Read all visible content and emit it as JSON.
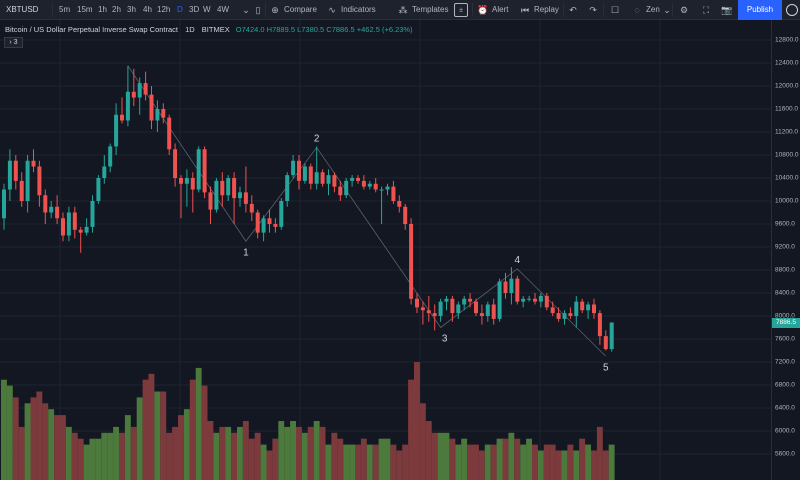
{
  "toolbar": {
    "symbol": "XBTUSD",
    "intervals": [
      "5m",
      "15m",
      "1h",
      "2h",
      "3h",
      "4h",
      "12h",
      "D",
      "3D",
      "W",
      "4W"
    ],
    "active_interval": "D",
    "compare_label": "Compare",
    "indicators_label": "Indicators",
    "templates_label": "Templates",
    "alert_label": "Alert",
    "replay_label": "Replay",
    "zen_label": "Zen",
    "publish_label": "Publish"
  },
  "legend": {
    "title": "Bitcoin / US Dollar Perpetual Inverse Swap Contract",
    "interval": "1D",
    "exchange": "BITMEX",
    "ohlc": "O7424.0 H7889.5 L7380.5 C7886.5 +462.5 (+6.23%)",
    "toggle": "› 3"
  },
  "price_scale": {
    "labels": [
      "12800.0",
      "12400.0",
      "12000.0",
      "11600.0",
      "11200.0",
      "10800.0",
      "10400.0",
      "10000.0",
      "9600.0",
      "9200.0",
      "8800.0",
      "8400.0",
      "8000.0",
      "7600.0",
      "7200.0",
      "6800.0",
      "6400.0",
      "6000.0",
      "5600.0"
    ],
    "current_price": "7886.5"
  },
  "colors": {
    "up": "#26a69a",
    "down": "#ef5350",
    "vol_up": "#4c7a3c",
    "vol_down": "#7d3a3c",
    "wave": "#5d606b"
  },
  "waves": [
    {
      "label": "1",
      "date_index": 41,
      "price": 9300
    },
    {
      "label": "2",
      "date_index": 53,
      "price": 10930
    },
    {
      "label": "3",
      "date_index": 74,
      "price": 7800
    },
    {
      "label": "4",
      "date_index": 87,
      "price": 8820
    },
    {
      "label": "5",
      "date_index": 102,
      "price": 7300
    }
  ],
  "chart_data": {
    "type": "candlestick",
    "symbol": "XBTUSD",
    "interval": "1D",
    "ylim": [
      5400,
      13000
    ],
    "candles": [
      [
        9700,
        10300,
        9500,
        10200
      ],
      [
        10200,
        10900,
        10000,
        10700
      ],
      [
        10700,
        10800,
        10200,
        10350
      ],
      [
        10350,
        10500,
        9900,
        10000
      ],
      [
        10000,
        10800,
        9800,
        10700
      ],
      [
        10700,
        10900,
        10500,
        10600
      ],
      [
        10600,
        10700,
        9900,
        10100
      ],
      [
        10100,
        10200,
        9600,
        9800
      ],
      [
        9800,
        10000,
        9700,
        9900
      ],
      [
        9900,
        10100,
        9600,
        9700
      ],
      [
        9700,
        9800,
        9300,
        9400
      ],
      [
        9400,
        9900,
        9300,
        9800
      ],
      [
        9800,
        9900,
        9350,
        9500
      ],
      [
        9500,
        9550,
        9100,
        9450
      ],
      [
        9450,
        9700,
        9400,
        9550
      ],
      [
        9550,
        10100,
        9450,
        10000
      ],
      [
        10000,
        10450,
        9950,
        10400
      ],
      [
        10400,
        10800,
        10300,
        10600
      ],
      [
        10600,
        11000,
        10500,
        10950
      ],
      [
        10950,
        11700,
        10800,
        11500
      ],
      [
        11500,
        11800,
        11350,
        11400
      ],
      [
        11400,
        12350,
        11300,
        11900
      ],
      [
        11900,
        12300,
        11650,
        11800
      ],
      [
        11800,
        12150,
        11500,
        12050
      ],
      [
        12050,
        12250,
        11750,
        11850
      ],
      [
        11850,
        12000,
        11250,
        11400
      ],
      [
        11400,
        11750,
        11200,
        11600
      ],
      [
        11600,
        11700,
        11350,
        11450
      ],
      [
        11450,
        11500,
        10800,
        10900
      ],
      [
        10900,
        11000,
        10250,
        10400
      ],
      [
        10400,
        10450,
        9700,
        10300
      ],
      [
        10300,
        10550,
        9900,
        10400
      ],
      [
        10400,
        10500,
        9800,
        10200
      ],
      [
        10200,
        10950,
        10150,
        10900
      ],
      [
        10900,
        10950,
        10050,
        10150
      ],
      [
        10150,
        10250,
        9600,
        9850
      ],
      [
        9850,
        10400,
        9800,
        10350
      ],
      [
        10350,
        10500,
        9900,
        10100
      ],
      [
        10100,
        10450,
        10000,
        10400
      ],
      [
        10400,
        10500,
        9600,
        10050
      ],
      [
        10050,
        10250,
        9900,
        10150
      ],
      [
        10150,
        10600,
        9800,
        9950
      ],
      [
        9950,
        10100,
        9650,
        9800
      ],
      [
        9800,
        9850,
        9350,
        9450
      ],
      [
        9450,
        9750,
        9300,
        9700
      ],
      [
        9700,
        9850,
        9450,
        9600
      ],
      [
        9600,
        9700,
        9450,
        9550
      ],
      [
        9550,
        10050,
        9500,
        10000
      ],
      [
        10000,
        10500,
        9900,
        10450
      ],
      [
        10450,
        10800,
        10400,
        10700
      ],
      [
        10700,
        10800,
        10200,
        10350
      ],
      [
        10350,
        10650,
        10300,
        10600
      ],
      [
        10600,
        10650,
        10200,
        10300
      ],
      [
        10300,
        10950,
        10200,
        10500
      ],
      [
        10500,
        10550,
        10250,
        10300
      ],
      [
        10300,
        10550,
        10100,
        10450
      ],
      [
        10450,
        10500,
        10150,
        10250
      ],
      [
        10250,
        10350,
        10000,
        10100
      ],
      [
        10100,
        10400,
        10050,
        10350
      ],
      [
        10350,
        10450,
        10250,
        10400
      ],
      [
        10400,
        10450,
        10300,
        10350
      ],
      [
        10350,
        10450,
        10200,
        10250
      ],
      [
        10250,
        10350,
        10200,
        10300
      ],
      [
        10300,
        10400,
        10150,
        10200
      ],
      [
        10200,
        10250,
        9600,
        10200
      ],
      [
        10200,
        10300,
        10100,
        10250
      ],
      [
        10250,
        10350,
        9950,
        10000
      ],
      [
        10000,
        10100,
        9800,
        9900
      ],
      [
        9900,
        9950,
        9500,
        9600
      ],
      [
        9600,
        9700,
        8200,
        8300
      ],
      [
        8300,
        8400,
        8050,
        8150
      ],
      [
        8150,
        8250,
        7850,
        8100
      ],
      [
        8100,
        8350,
        7900,
        8050
      ],
      [
        8050,
        8200,
        7750,
        8000
      ],
      [
        8000,
        8300,
        7900,
        8250
      ],
      [
        8250,
        8350,
        8100,
        8300
      ],
      [
        8300,
        8350,
        7900,
        8050
      ],
      [
        8050,
        8250,
        7950,
        8200
      ],
      [
        8200,
        8350,
        8100,
        8300
      ],
      [
        8300,
        8400,
        8150,
        8250
      ],
      [
        8250,
        8300,
        8000,
        8050
      ],
      [
        8050,
        8200,
        7850,
        8000
      ],
      [
        8000,
        8250,
        7900,
        8200
      ],
      [
        8200,
        8300,
        7850,
        7950
      ],
      [
        7950,
        8650,
        7900,
        8600
      ],
      [
        8600,
        8750,
        8300,
        8400
      ],
      [
        8400,
        8850,
        8200,
        8650
      ],
      [
        8650,
        8700,
        8200,
        8250
      ],
      [
        8250,
        8350,
        8150,
        8300
      ],
      [
        8300,
        8350,
        8250,
        8300
      ],
      [
        8300,
        8400,
        8200,
        8250
      ],
      [
        8250,
        8400,
        8150,
        8350
      ],
      [
        8350,
        8400,
        8100,
        8150
      ],
      [
        8150,
        8250,
        8000,
        8050
      ],
      [
        8050,
        8150,
        7900,
        7950
      ],
      [
        7950,
        8100,
        7850,
        8050
      ],
      [
        8050,
        8150,
        7950,
        8000
      ],
      [
        8000,
        8350,
        7800,
        8250
      ],
      [
        8250,
        8300,
        8050,
        8100
      ],
      [
        8100,
        8250,
        7950,
        8200
      ],
      [
        8200,
        8300,
        7950,
        8050
      ],
      [
        8050,
        8100,
        7500,
        7650
      ],
      [
        7650,
        7750,
        7400,
        7424
      ],
      [
        7424,
        7889.5,
        7380.5,
        7886.5
      ]
    ],
    "volume": [
      0.85,
      0.8,
      0.7,
      0.45,
      0.65,
      0.7,
      0.75,
      0.65,
      0.6,
      0.55,
      0.55,
      0.45,
      0.4,
      0.35,
      0.3,
      0.35,
      0.35,
      0.4,
      0.4,
      0.45,
      0.4,
      0.55,
      0.45,
      0.7,
      0.85,
      0.9,
      0.75,
      0.75,
      0.4,
      0.45,
      0.55,
      0.6,
      0.85,
      0.95,
      0.8,
      0.5,
      0.4,
      0.45,
      0.45,
      0.4,
      0.45,
      0.5,
      0.35,
      0.4,
      0.3,
      0.25,
      0.35,
      0.5,
      0.45,
      0.5,
      0.45,
      0.4,
      0.45,
      0.5,
      0.45,
      0.3,
      0.4,
      0.35,
      0.3,
      0.3,
      0.3,
      0.35,
      0.3,
      0.3,
      0.35,
      0.35,
      0.3,
      0.25,
      0.3,
      0.85,
      1.0,
      0.65,
      0.5,
      0.4,
      0.4,
      0.4,
      0.35,
      0.3,
      0.35,
      0.3,
      0.3,
      0.25,
      0.3,
      0.3,
      0.35,
      0.35,
      0.4,
      0.35,
      0.3,
      0.35,
      0.3,
      0.25,
      0.3,
      0.3,
      0.25,
      0.25,
      0.3,
      0.25,
      0.35,
      0.3,
      0.25,
      0.45,
      0.25,
      0.3
    ]
  }
}
